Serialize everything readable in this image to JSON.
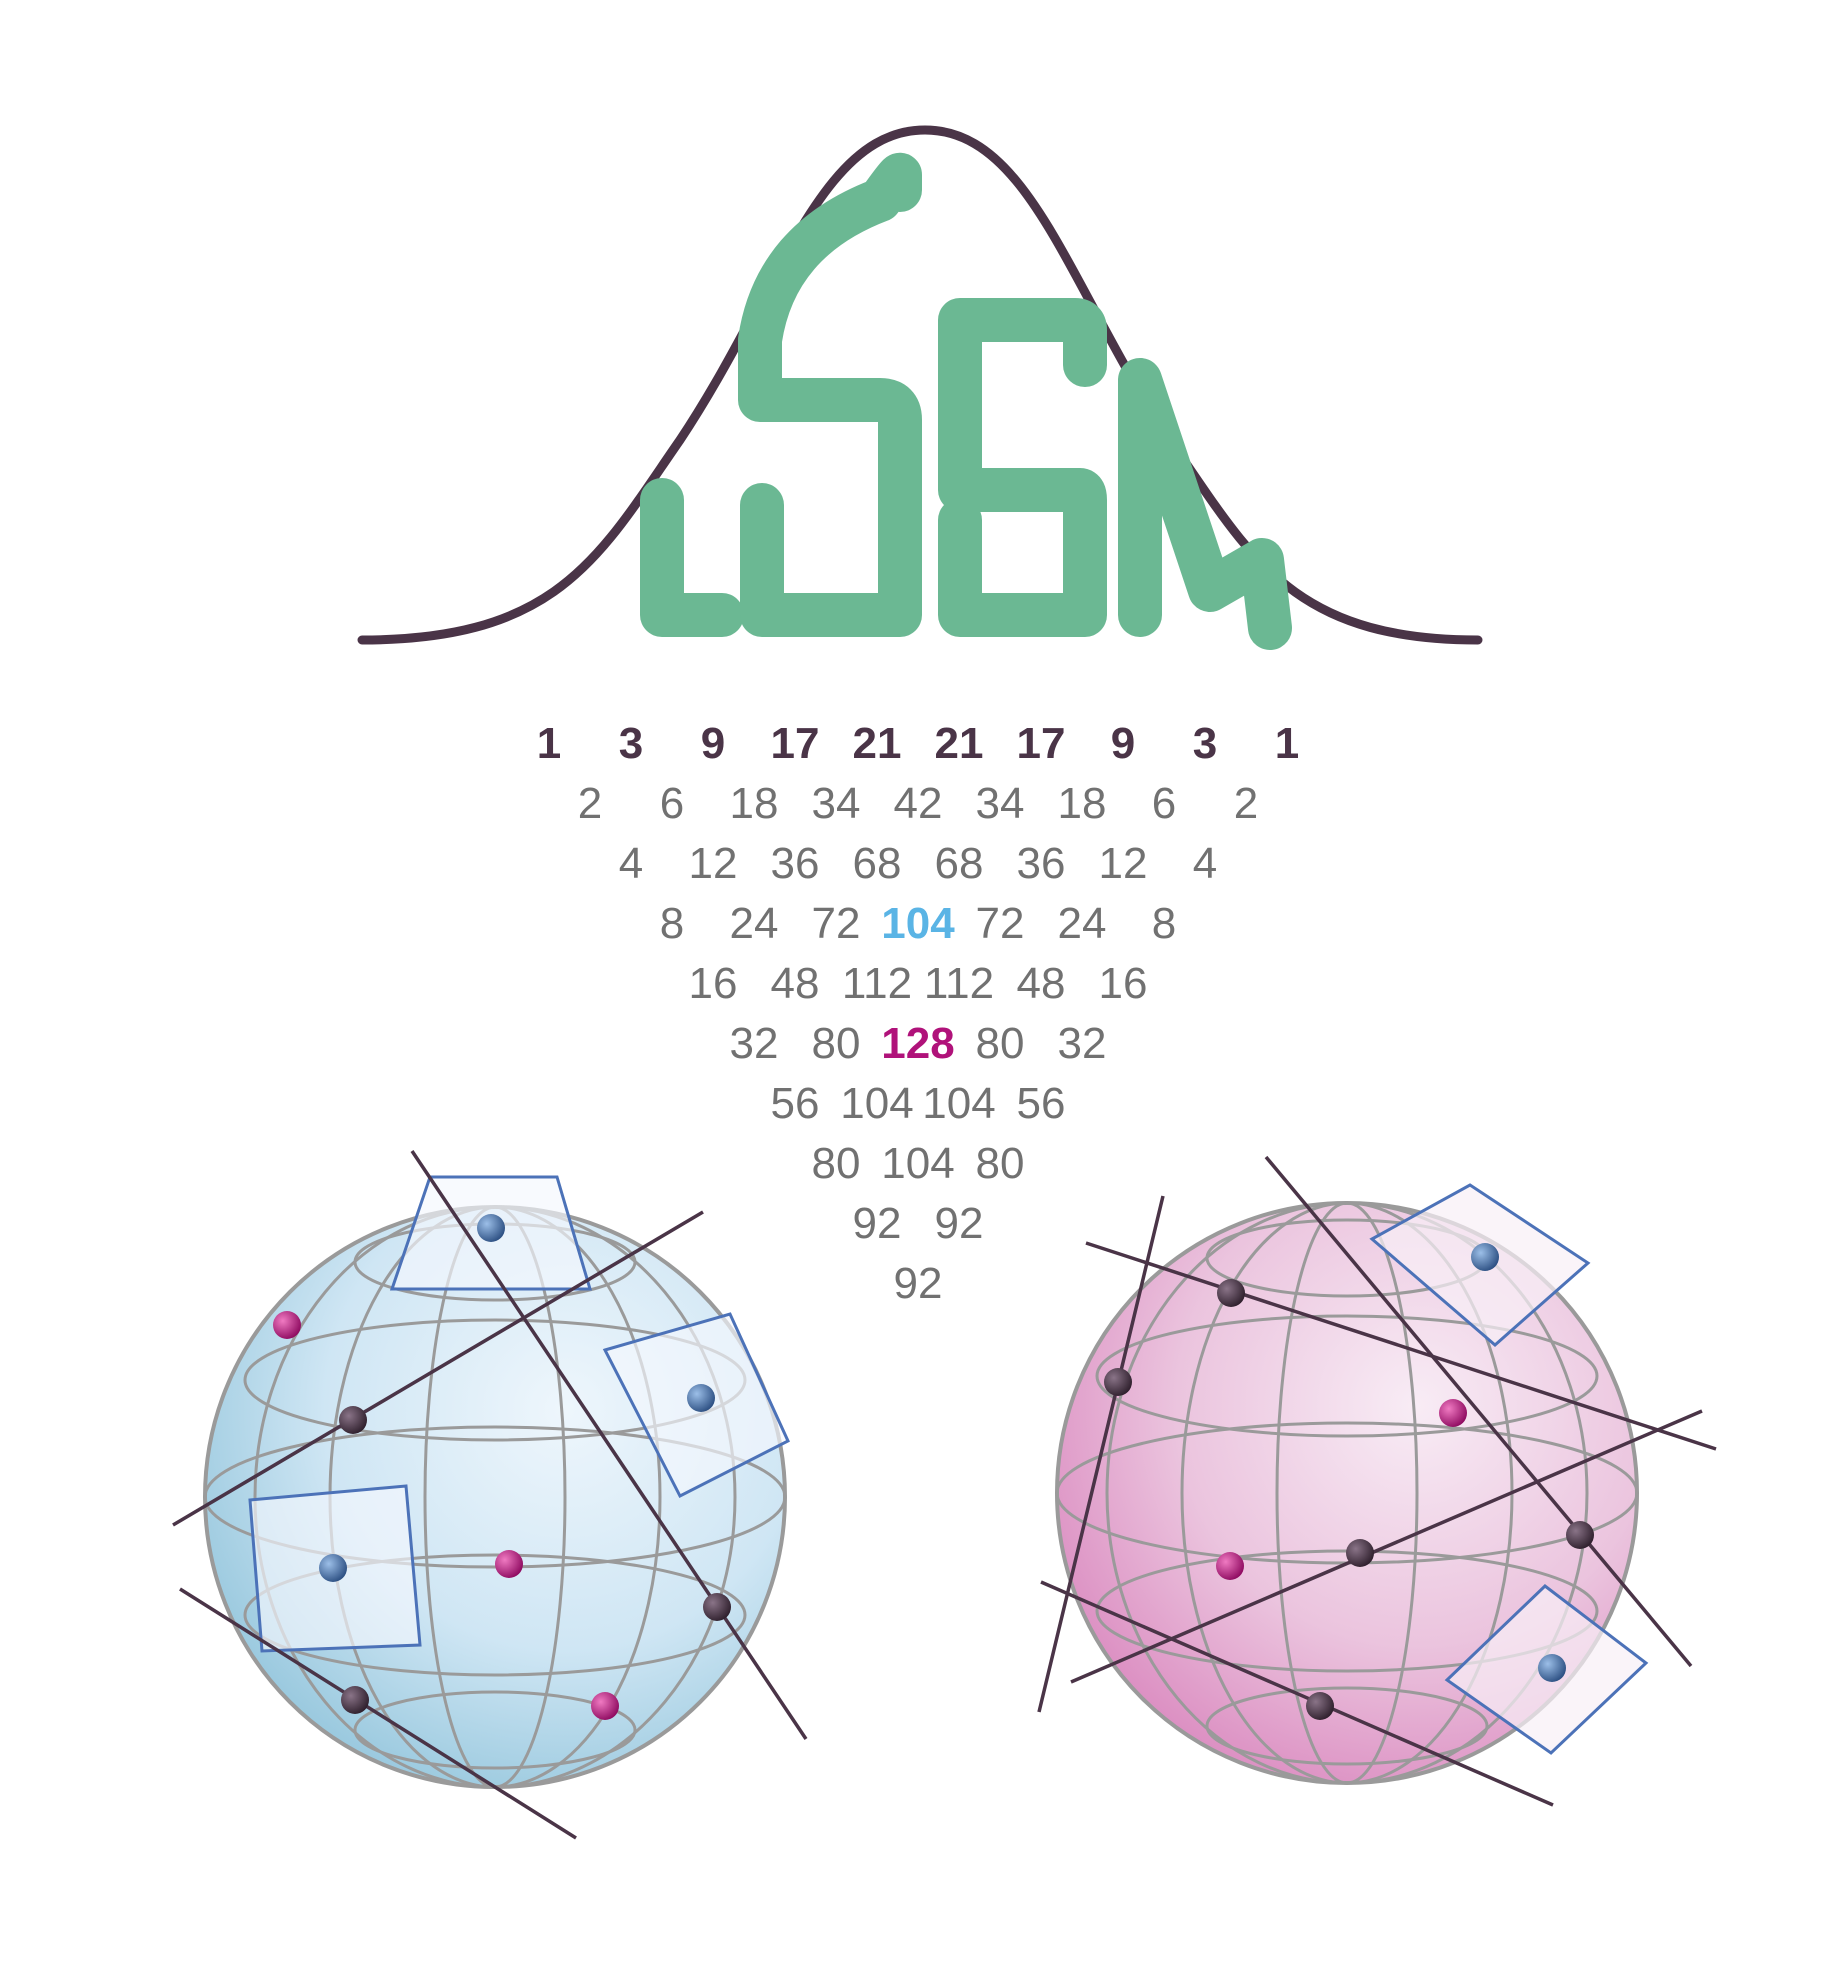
{
  "logo": {
    "letters": "LSSM",
    "colors": {
      "curve": "#4a3447",
      "letters": "#6bb893"
    }
  },
  "triangle": {
    "rows": [
      [
        "1",
        "3",
        "9",
        "17",
        "21",
        "21",
        "17",
        "9",
        "3",
        "1"
      ],
      [
        "2",
        "6",
        "18",
        "34",
        "42",
        "34",
        "18",
        "6",
        "2"
      ],
      [
        "4",
        "12",
        "36",
        "68",
        "68",
        "36",
        "12",
        "4"
      ],
      [
        "8",
        "24",
        "72",
        "104",
        "72",
        "24",
        "8"
      ],
      [
        "16",
        "48",
        "112",
        "112",
        "48",
        "16"
      ],
      [
        "32",
        "80",
        "128",
        "80",
        "32"
      ],
      [
        "56",
        "104",
        "104",
        "56"
      ],
      [
        "80",
        "104",
        "80"
      ],
      [
        "92",
        "92"
      ],
      [
        "92"
      ]
    ],
    "colors": {
      "default": "#717171",
      "first_row": "#4a3447",
      "highlight_blue": "#5ab4e5",
      "highlight_magenta": "#b0127a"
    }
  },
  "spheres": [
    {
      "name": "blue-sphere",
      "colors": {
        "light": "#eaf3fb",
        "mid": "#cfe6f4",
        "dark": "#8fc3da"
      }
    },
    {
      "name": "pink-sphere",
      "colors": {
        "light": "#f6e6f1",
        "mid": "#e9bedb",
        "dark": "#d985bd"
      }
    }
  ],
  "marker_colors": {
    "dark": "#3a2a38",
    "magenta": "#b0127a",
    "blue": "#3f6eaa",
    "frame": "#4c72b8",
    "line": "#4a3447"
  }
}
